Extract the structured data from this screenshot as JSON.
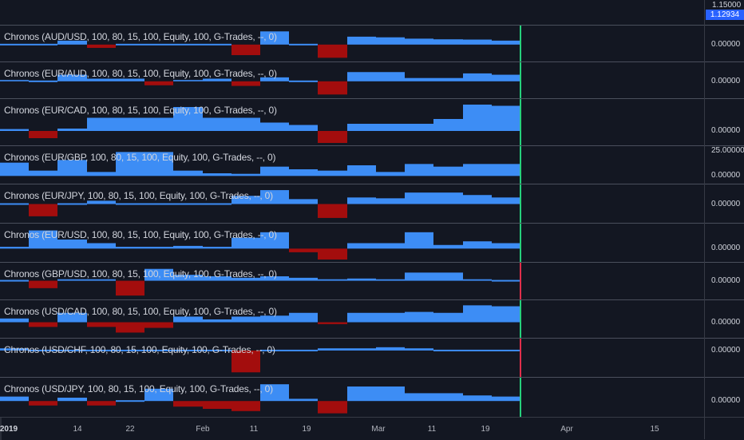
{
  "top_axis": {
    "price_top": "1.15000",
    "price_badge": "1.12934"
  },
  "colors": {
    "positive": "#3d8df5",
    "negative": "#a30d0d",
    "bar_green": "#26d07c",
    "bar_red": "#e02f4b",
    "background": "#131722"
  },
  "time_axis": {
    "ticks": [
      {
        "label": "2019",
        "bold": true
      },
      {
        "label": "14",
        "bold": false
      },
      {
        "label": "22",
        "bold": false
      },
      {
        "label": "Feb",
        "bold": false
      },
      {
        "label": "11",
        "bold": false
      },
      {
        "label": "19",
        "bold": false
      },
      {
        "label": "Mar",
        "bold": false
      },
      {
        "label": "11",
        "bold": false
      },
      {
        "label": "19",
        "bold": false
      },
      {
        "label": "Apr",
        "bold": false
      },
      {
        "label": "15",
        "bold": false
      }
    ]
  },
  "chart_data": {
    "type": "area",
    "x": [
      "Jan 3",
      "Jan 10",
      "Jan 14",
      "Jan 18",
      "Jan 22",
      "Jan 28",
      "Feb 1",
      "Feb 6",
      "Feb 11",
      "Feb 15",
      "Feb 19",
      "Feb 25",
      "Mar 1",
      "Mar 6",
      "Mar 11",
      "Mar 15",
      "Mar 19",
      "Mar 25"
    ],
    "last_bar_x": "Mar 25",
    "series": [
      {
        "name": "Chronos (AUD/USD, 100, 80, 15, 100, Equity, 100, G-Trades, --, 0)",
        "axis_value": "0.00000",
        "ylim": [
          -1.1,
          1.2
        ],
        "last_bar_color": "green",
        "values": [
          0.08,
          0.05,
          0.3,
          -0.25,
          0.05,
          0.05,
          0.05,
          0.05,
          -0.8,
          1.0,
          0.0,
          -1.0,
          0.6,
          0.55,
          0.45,
          0.4,
          0.38,
          0.3
        ]
      },
      {
        "name": "Chronos (EUR/AUD, 100, 80, 15, 100, Equity, 100, G-Trades, --, 0)",
        "axis_value": "0.00000",
        "ylim": [
          -1.1,
          1.2
        ],
        "last_bar_color": "green",
        "values": [
          0.1,
          0.05,
          0.5,
          0.2,
          0.2,
          -0.3,
          0.1,
          0.2,
          -0.35,
          0.3,
          0.05,
          -1.0,
          0.7,
          0.7,
          0.25,
          0.25,
          0.6,
          0.5
        ]
      },
      {
        "name": "Chronos (EUR/CAD, 100, 80, 15, 100, Equity, 100, G-Trades, --, 0)",
        "axis_value": "0.00000",
        "ylim": [
          -0.5,
          1.2
        ],
        "last_bar_color": "green",
        "values": [
          0.08,
          -0.3,
          0.1,
          0.55,
          0.55,
          0.55,
          1.0,
          0.55,
          0.55,
          0.35,
          0.25,
          -0.5,
          0.3,
          0.3,
          0.3,
          0.5,
          1.1,
          1.05
        ]
      },
      {
        "name": "Chronos (EUR/GBP, 100, 80, 15, 100, Equity, 100, G-Trades, --, 0)",
        "axis_value": "0.00000",
        "axis_value_top": "25.00000",
        "ylim": [
          -0.2,
          1.0
        ],
        "last_bar_color": "green",
        "values": [
          0.5,
          0.2,
          0.6,
          0.15,
          0.9,
          0.9,
          0.2,
          0.1,
          0.08,
          0.35,
          0.25,
          0.2,
          0.4,
          0.15,
          0.45,
          0.35,
          0.45,
          0.45
        ]
      },
      {
        "name": "Chronos (EUR/JPY, 100, 80, 15, 100, Equity, 100, G-Trades, --, 0)",
        "axis_value": "0.00000",
        "ylim": [
          -1.0,
          1.0
        ],
        "last_bar_color": "green",
        "values": [
          0.05,
          -0.75,
          0.05,
          0.2,
          0.0,
          0.0,
          0.0,
          0.0,
          0.5,
          0.85,
          0.3,
          -0.85,
          0.4,
          0.35,
          0.7,
          0.7,
          0.55,
          0.4
        ]
      },
      {
        "name": "Chronos (EUR/USD, 100, 80, 15, 100, Equity, 100, G-Trades, --, 0)",
        "axis_value": "0.00000",
        "ylim": [
          -0.6,
          1.2
        ],
        "last_bar_color": "green",
        "values": [
          0.1,
          1.0,
          0.5,
          0.3,
          0.1,
          0.1,
          0.15,
          0.1,
          0.6,
          0.9,
          -0.2,
          -0.6,
          0.3,
          0.3,
          0.9,
          0.2,
          0.4,
          0.3
        ]
      },
      {
        "name": "Chronos (GBP/USD, 100, 80, 15, 100, Equity, 100, G-Trades, --, 0)",
        "axis_value": "0.00000",
        "ylim": [
          -1.1,
          1.0
        ],
        "last_bar_color": "red",
        "values": [
          0.05,
          -0.5,
          0.1,
          0.1,
          -1.0,
          0.8,
          0.4,
          0.3,
          0.2,
          0.3,
          0.2,
          0.1,
          0.15,
          0.1,
          0.55,
          0.55,
          0.1,
          0.05
        ]
      },
      {
        "name": "Chronos (USD/CAD, 100, 80, 15, 100, Equity, 100, G-Trades, --, 0)",
        "axis_value": "0.00000",
        "ylim": [
          -0.7,
          1.0
        ],
        "last_bar_color": "green",
        "values": [
          0.2,
          -0.25,
          0.5,
          -0.25,
          -0.55,
          -0.3,
          0.3,
          0.15,
          0.3,
          0.35,
          0.5,
          -0.1,
          0.5,
          0.5,
          0.55,
          0.5,
          0.9,
          0.85
        ]
      },
      {
        "name": "Chronos (USD/CHF, 100, 80, 15, 100, Equity, 100, G-Trades, --, 0)",
        "axis_value": "0.00000",
        "ylim": [
          -1.1,
          0.4
        ],
        "last_bar_color": "red",
        "values": [
          0.1,
          0.05,
          0.05,
          0.05,
          0.05,
          0.05,
          0.05,
          0.05,
          -1.0,
          0.0,
          0.05,
          0.1,
          0.1,
          0.15,
          0.1,
          0.05,
          0.03,
          0.0
        ]
      },
      {
        "name": "Chronos (USD/JPY, 100, 80, 15, 100, Equity, 100, G-Trades, --, 0)",
        "axis_value": "0.00000",
        "ylim": [
          -0.6,
          0.9
        ],
        "last_bar_color": "green",
        "values": [
          0.2,
          -0.2,
          0.15,
          -0.2,
          0.05,
          0.55,
          -0.25,
          -0.35,
          -0.45,
          0.75,
          0.1,
          -0.55,
          0.65,
          0.65,
          0.35,
          0.35,
          0.25,
          0.2
        ]
      }
    ]
  }
}
